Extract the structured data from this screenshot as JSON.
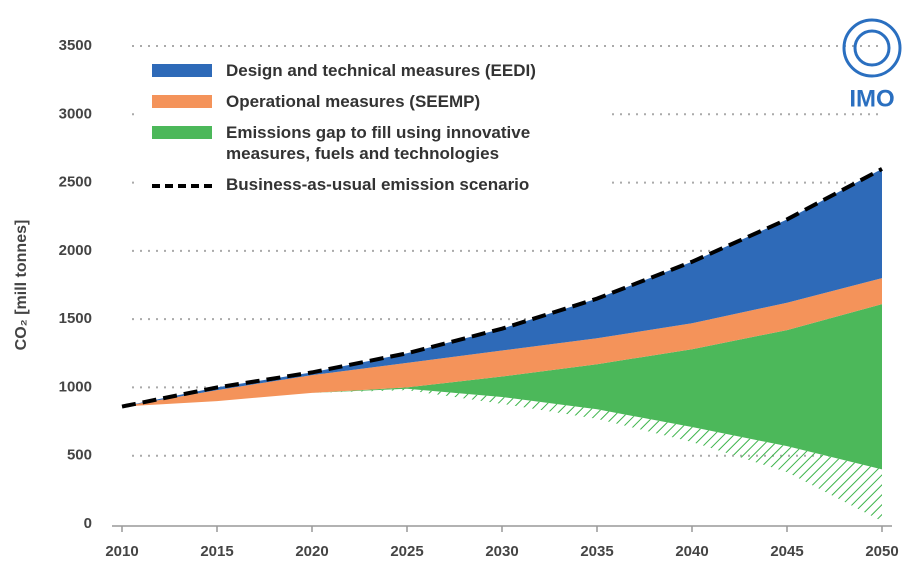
{
  "chart_data": {
    "type": "stacked-area",
    "y_label": "CO₂ [mill tonnes]",
    "logo": "IMO",
    "x": [
      2010,
      2015,
      2020,
      2025,
      2030,
      2035,
      2040,
      2045,
      2050
    ],
    "series": [
      {
        "color": "none",
        "values": [
          860,
          900,
          960,
          980,
          880,
          770,
          600,
          380,
          20
        ]
      },
      {
        "color": "#3cb44a",
        "pattern": "hatch",
        "values": [
          0,
          0,
          0,
          10,
          50,
          70,
          110,
          190,
          380
        ]
      },
      {
        "name": "Emissions gap to fill using innovative measures, fuels and technologies",
        "color": "#4cb85a",
        "values": [
          0,
          0,
          0,
          10,
          150,
          330,
          570,
          850,
          1210
        ]
      },
      {
        "name": "Operational measures (SEEMP)",
        "color": "#f4935a",
        "values": [
          0,
          80,
          130,
          180,
          190,
          190,
          190,
          200,
          190
        ]
      },
      {
        "name": "Design and technical measures (EEDI)",
        "color": "#2e6ab8",
        "values": [
          0,
          20,
          20,
          70,
          160,
          290,
          450,
          610,
          800
        ]
      }
    ],
    "line": {
      "name": "Business-as-usual emission scenario",
      "color": "#000000",
      "dashed": true,
      "values": [
        860,
        1000,
        1110,
        1250,
        1430,
        1650,
        1920,
        2230,
        2600
      ]
    },
    "xlim": [
      2010,
      2050
    ],
    "xticks": [
      2010,
      2015,
      2020,
      2025,
      2030,
      2035,
      2040,
      2045,
      2050
    ],
    "ylim": [
      0,
      3500
    ],
    "yticks": [
      0,
      500,
      1000,
      1500,
      2000,
      2500,
      3000,
      3500
    ],
    "grid": true
  }
}
